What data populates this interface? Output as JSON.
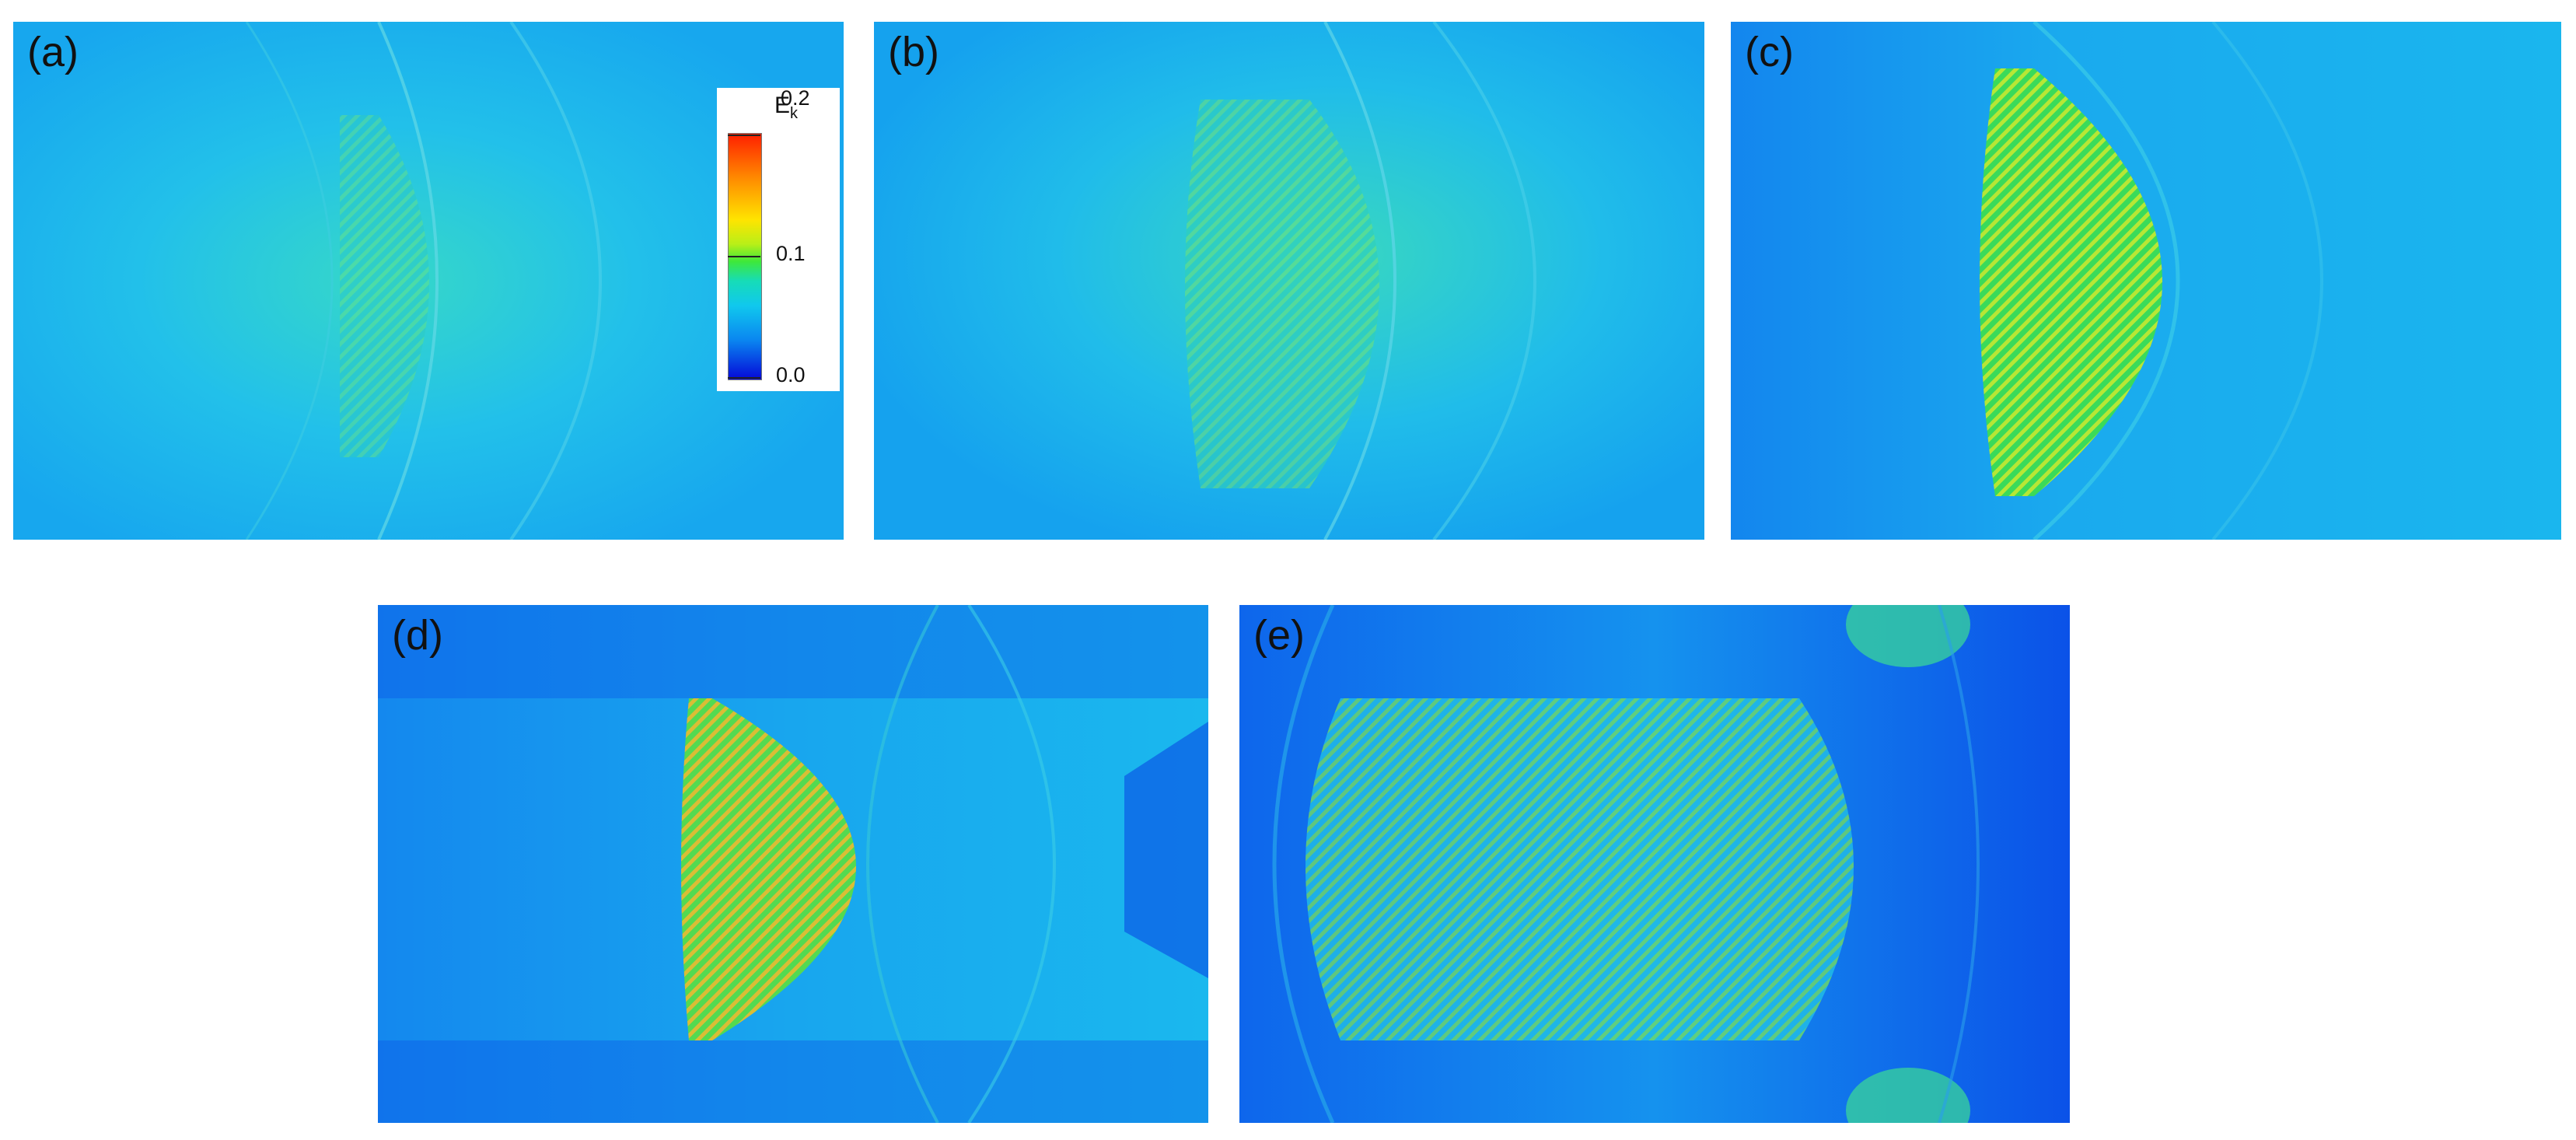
{
  "panels": [
    {
      "id": "a",
      "label": "(a)"
    },
    {
      "id": "b",
      "label": "(b)"
    },
    {
      "id": "c",
      "label": "(c)"
    },
    {
      "id": "d",
      "label": "(d)"
    },
    {
      "id": "e",
      "label": "(e)"
    }
  ],
  "colorbar": {
    "title_main": "E",
    "title_sub": "k",
    "ticks": [
      "0.2",
      "0.1",
      "0.0"
    ],
    "colors": [
      "#ff1f00",
      "#ffe400",
      "#3ee83a",
      "#10c8ee",
      "#0508d8"
    ]
  }
}
